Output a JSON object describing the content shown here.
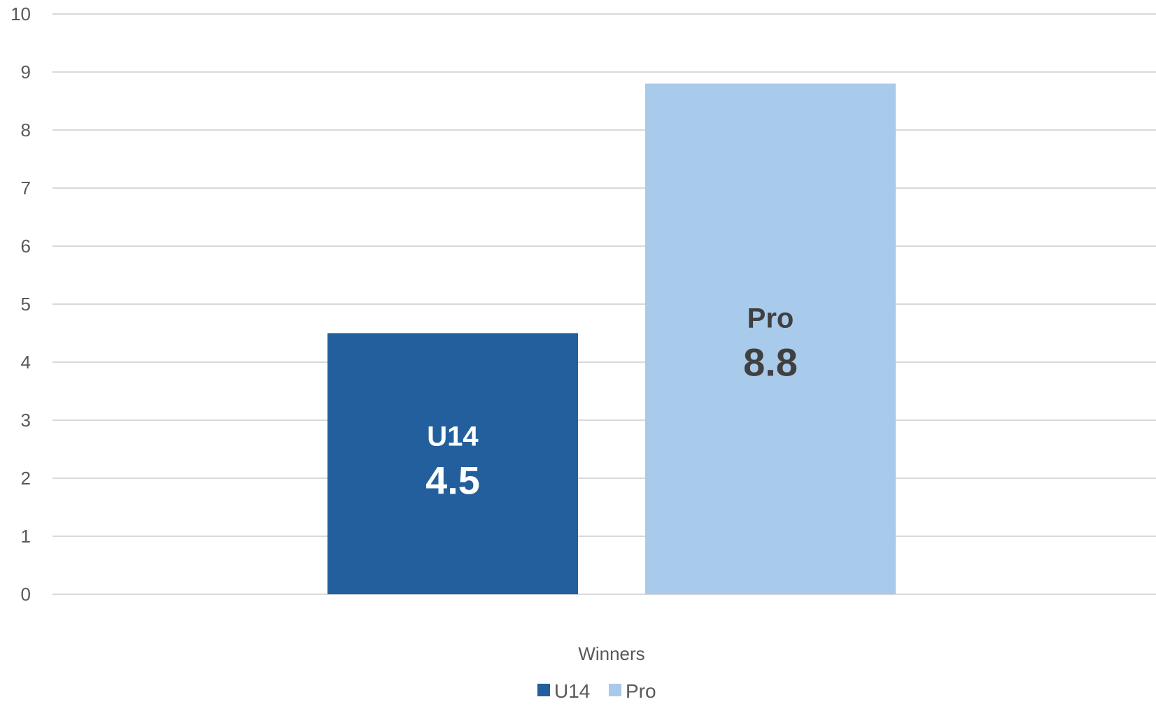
{
  "chart_data": {
    "type": "bar",
    "title": "",
    "xlabel": "",
    "ylabel": "",
    "categories": [
      "Winners"
    ],
    "series": [
      {
        "name": "U14",
        "values": [
          4.5
        ],
        "color": "#235f9c",
        "label_color": "#ffffff"
      },
      {
        "name": "Pro",
        "values": [
          8.8
        ],
        "color": "#a8caeb",
        "label_color": "#404040"
      }
    ],
    "ylim": [
      0,
      10
    ],
    "y_ticks": [
      "0",
      "1",
      "2",
      "3",
      "4",
      "5",
      "6",
      "7",
      "8",
      "9",
      "10"
    ],
    "grid": true,
    "grid_color": "#d9d9d9",
    "legend": {
      "position": "bottom",
      "entries": [
        "U14",
        "Pro"
      ]
    },
    "data_labels": [
      {
        "series": "U14",
        "name": "U14",
        "value": "4.5"
      },
      {
        "series": "Pro",
        "name": "Pro",
        "value": "8.8"
      }
    ]
  }
}
